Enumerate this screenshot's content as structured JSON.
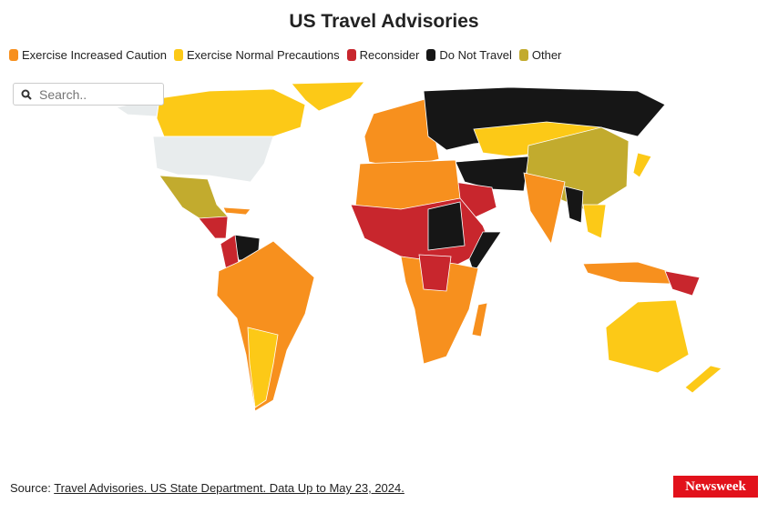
{
  "header": {
    "title": "US Travel Advisories"
  },
  "legend": [
    {
      "label": "Exercise Increased Caution",
      "color": "#f7901e"
    },
    {
      "label": "Exercise Normal Precautions",
      "color": "#fcc917"
    },
    {
      "label": "Reconsider",
      "color": "#c8262d"
    },
    {
      "label": "Do Not Travel",
      "color": "#161616"
    },
    {
      "label": "Other",
      "color": "#c2ab2e"
    }
  ],
  "search": {
    "placeholder": "Search.."
  },
  "footer": {
    "source_prefix": "Source:",
    "source_link": "Travel Advisories. US State Department. Data Up to May 23, 2024.",
    "logo": "Newsweek"
  }
}
